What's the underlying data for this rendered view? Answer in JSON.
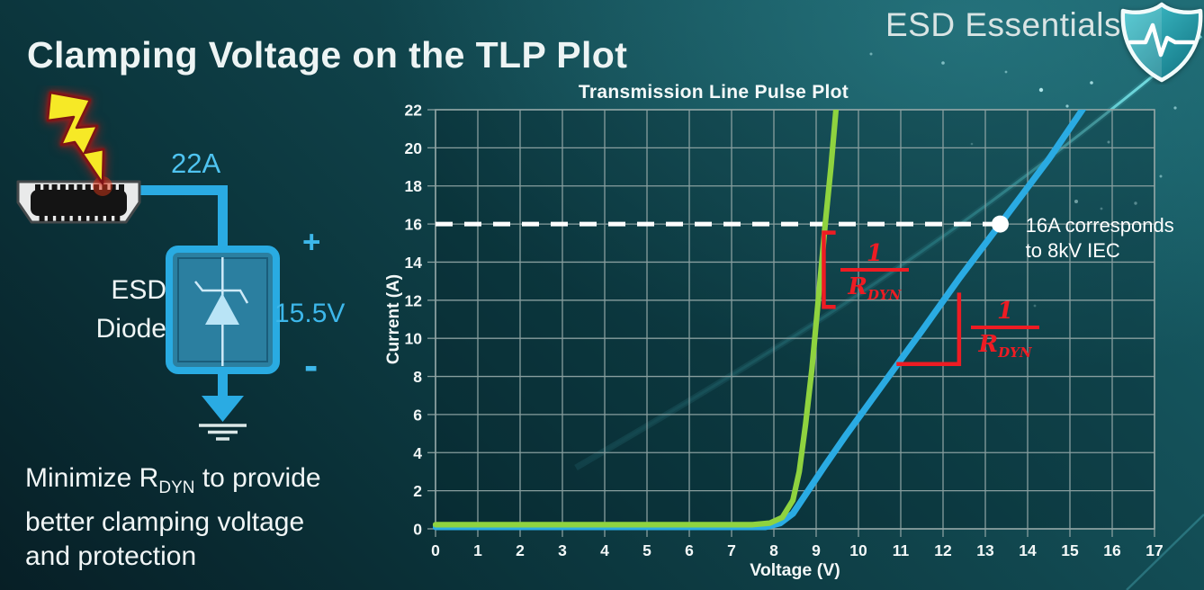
{
  "slide": {
    "title": "Clamping Voltage on the TLP Plot",
    "brand": "ESD Essentials",
    "note": {
      "line1_pre": "Minimize R",
      "line1_sub": "DYN",
      "line1_post": " to provide",
      "line2": "better clamping voltage",
      "line3": "and protection"
    }
  },
  "diagram": {
    "surge_current_label": "22A",
    "device_label_line1": "ESD",
    "device_label_line2": "Diode",
    "plus_label": "+",
    "clamp_voltage_label": "15.5V",
    "minus_label": "-"
  },
  "chart_data": {
    "type": "line",
    "title": "Transmission Line Pulse Plot",
    "xlabel": "Voltage (V)",
    "ylabel": "Current (A)",
    "xlim": [
      0,
      17
    ],
    "ylim": [
      0,
      22
    ],
    "x_ticks": [
      0,
      1,
      2,
      3,
      4,
      5,
      6,
      7,
      8,
      9,
      10,
      11,
      12,
      13,
      14,
      15,
      16,
      17
    ],
    "y_ticks": [
      0,
      2,
      4,
      6,
      8,
      10,
      12,
      14,
      16,
      18,
      20,
      22
    ],
    "grid": true,
    "legend_position": "none",
    "series": [
      {
        "id": "blue-curve",
        "color": "#2aabe3",
        "width": 7.2,
        "points": [
          [
            0,
            0.1
          ],
          [
            7.8,
            0.1
          ],
          [
            8.15,
            0.3
          ],
          [
            8.45,
            0.8
          ],
          [
            8.75,
            1.8
          ],
          [
            9.2,
            3.3
          ],
          [
            9.7,
            4.9
          ],
          [
            10.55,
            7.5
          ],
          [
            11.5,
            10.4
          ],
          [
            12.4,
            13.2
          ],
          [
            13.35,
            16
          ],
          [
            14.5,
            19.4
          ],
          [
            15.6,
            23
          ]
        ]
      },
      {
        "id": "green-curve",
        "color": "#8fd33f",
        "width": 6.2,
        "points": [
          [
            0,
            0.22
          ],
          [
            7.5,
            0.22
          ],
          [
            7.9,
            0.3
          ],
          [
            8.2,
            0.6
          ],
          [
            8.45,
            1.5
          ],
          [
            8.6,
            3.0
          ],
          [
            8.75,
            5.5
          ],
          [
            8.9,
            8.4
          ],
          [
            9.05,
            12
          ],
          [
            9.21,
            15.9
          ],
          [
            9.35,
            19
          ],
          [
            9.5,
            22.8
          ]
        ]
      }
    ],
    "reference_line": {
      "a": 16,
      "v_start": 0,
      "v_end": 13.35,
      "color": "#ffffff",
      "style": "dashed"
    },
    "marker": {
      "v": 13.35,
      "a": 16,
      "color": "#ffffff",
      "label_line1": "16A corresponds",
      "label_line2": "to 8kV IEC",
      "label_v": 13.95,
      "label_a": 16.55
    },
    "slope_annotations": [
      {
        "id": "green-slope",
        "shape": "bracket",
        "color": "#ee1c23",
        "v": 9.18,
        "a_top": 15.55,
        "a_bottom": 11.65,
        "tick_v": 9.46,
        "frac_v": 10.38,
        "frac_a": 13.46,
        "numerator": "1",
        "denominator": "R",
        "denominator_sub": "DYN"
      },
      {
        "id": "blue-slope",
        "shape": "corner",
        "color": "#ee1c23",
        "v_corner": 12.38,
        "a_top": 12.4,
        "a_corner": 8.65,
        "v_left": 10.9,
        "frac_v": 13.47,
        "frac_a": 10.43,
        "numerator": "1",
        "denominator": "R",
        "denominator_sub": "DYN"
      }
    ],
    "colors": {
      "grid": "#8fa4a4",
      "text": "#f3f8f8"
    }
  }
}
